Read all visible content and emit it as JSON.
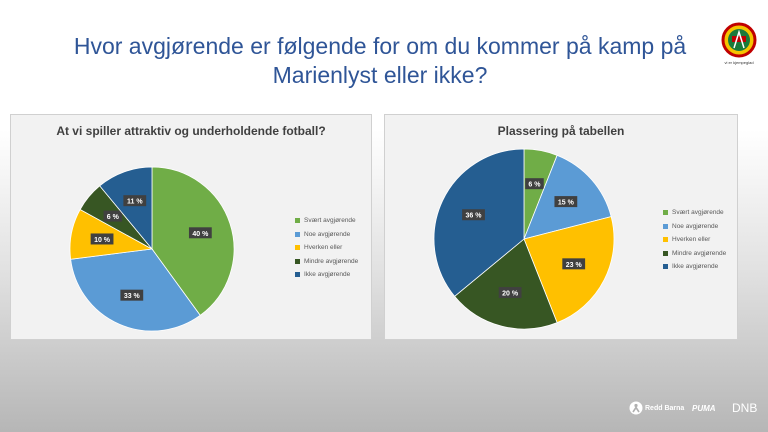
{
  "slide": {
    "title_line1": "Hvor avgjørende er følgende for om du kommer på kamp på",
    "title_line2": "Marienlyst eller ikke?",
    "logo_text": "vi er kjempeglad",
    "sponsors": {
      "redd_barna": "Redd Barna",
      "puma": "PUMA",
      "dnb": "DNB"
    }
  },
  "chart_data": [
    {
      "type": "pie",
      "title": "At vi spiller attraktiv og underholdende fotball?",
      "categories": [
        "Svært avgjørende",
        "Noe avgjørende",
        "Hverken eller",
        "Mindre avgjørende",
        "Ikke avgjørende"
      ],
      "values": [
        40,
        33,
        10,
        6,
        11
      ],
      "labels": [
        "40 %",
        "33 %",
        "10 %",
        "6 %",
        "11 %"
      ],
      "colors": [
        "#70ad47",
        "#5b9bd5",
        "#ffc000",
        "#375623",
        "#255e91"
      ],
      "legend_position": "right"
    },
    {
      "type": "pie",
      "title": "Plassering på tabellen",
      "categories": [
        "Svært avgjørende",
        "Noe avgjørende",
        "Hverken eller",
        "Mindre avgjørende",
        "Ikke avgjørende"
      ],
      "values": [
        6,
        15,
        23,
        20,
        36
      ],
      "labels": [
        "6 %",
        "15 %",
        "23 %",
        "20 %",
        "36 %"
      ],
      "colors": [
        "#70ad47",
        "#5b9bd5",
        "#ffc000",
        "#375623",
        "#255e91"
      ],
      "legend_position": "right"
    }
  ]
}
